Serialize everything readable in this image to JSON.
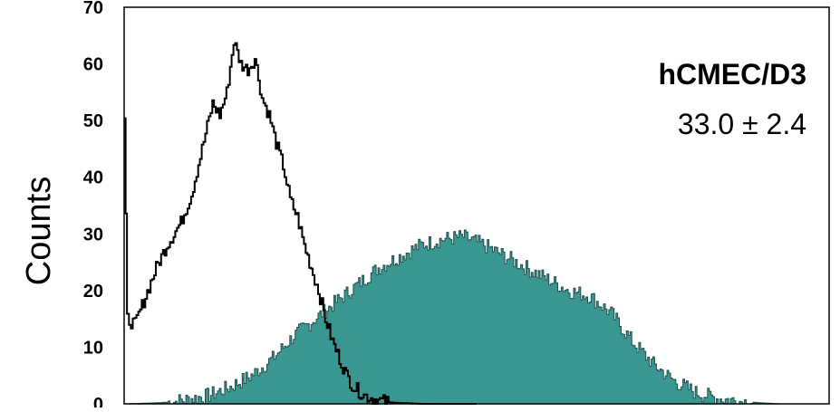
{
  "chart_data": {
    "type": "area",
    "title": "",
    "xlabel": "",
    "ylabel": "Counts",
    "ylim": [
      0,
      70
    ],
    "xlim": [
      0,
      100
    ],
    "y_ticks": [
      "0",
      "10",
      "20",
      "30",
      "40",
      "50",
      "60",
      "70"
    ],
    "x_ticks_labeled": false,
    "grid": false,
    "annotations": [
      {
        "text": "hCMEC/D3",
        "bold": true
      },
      {
        "text": "33.0 ± 2.4",
        "bold": false
      }
    ],
    "series": [
      {
        "style": "outline",
        "color": "#000000",
        "x": [
          0,
          0.4,
          1.5,
          3,
          4.5,
          6,
          8,
          9.5,
          11,
          12.5,
          13.5,
          14.5,
          15.5,
          16.5,
          17.5,
          18.5,
          19.5,
          20.5,
          21.5,
          22.5,
          23.5,
          24.5,
          25.5,
          26.5,
          27.5,
          28.5,
          29.5,
          30.5,
          31.5,
          32.5,
          34,
          36,
          38,
          40,
          42,
          45,
          50
        ],
        "y": [
          50,
          15,
          14,
          19,
          24,
          28,
          32,
          37,
          45,
          53,
          51,
          55,
          64,
          60,
          59,
          61,
          54,
          51,
          46,
          42,
          36,
          33,
          28,
          24,
          20,
          15,
          11,
          8,
          5,
          3,
          1.5,
          0.6,
          0.2,
          0.1,
          0,
          0,
          0
        ]
      },
      {
        "style": "filled",
        "color": "#3a9690",
        "x": [
          0,
          5,
          7,
          9,
          12,
          15,
          18,
          21,
          24,
          27,
          30,
          33,
          36,
          39,
          42,
          45,
          48,
          51,
          54,
          57,
          60,
          63,
          66,
          69,
          72,
          75,
          78,
          81,
          84,
          87,
          90,
          93,
          100
        ],
        "y": [
          0,
          0.2,
          0.4,
          0.8,
          1.5,
          3,
          5,
          8,
          12,
          15,
          18,
          21,
          24,
          26,
          28,
          29,
          29.5,
          28,
          26,
          24,
          22,
          20,
          19,
          16,
          11,
          7,
          4,
          2,
          1,
          0.5,
          0.2,
          0,
          0
        ]
      }
    ]
  }
}
